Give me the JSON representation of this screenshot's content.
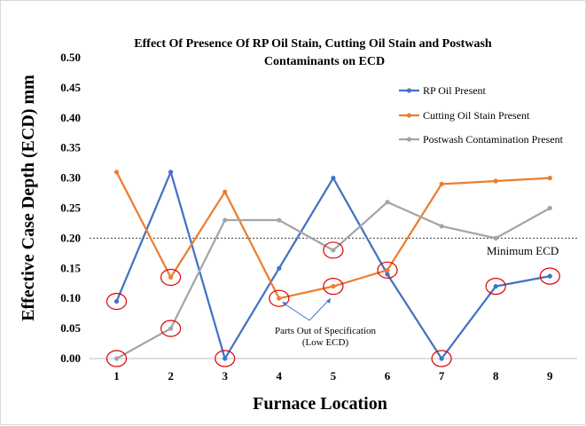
{
  "chart_data": {
    "type": "line",
    "title_line1": "Effect Of Presence Of RP Oil Stain, Cutting Oil Stain and Postwash",
    "title_line2": "Contaminants on ECD",
    "xlabel": "Furnace Location",
    "ylabel": "Effective Case Depth  (ECD) mm",
    "categories": [
      "1",
      "2",
      "3",
      "4",
      "5",
      "6",
      "7",
      "8",
      "9"
    ],
    "yticks": [
      "0.00",
      "0.05",
      "0.10",
      "0.15",
      "0.20",
      "0.25",
      "0.30",
      "0.35",
      "0.40",
      "0.45",
      "0.50"
    ],
    "ylim": [
      0,
      0.5
    ],
    "series": [
      {
        "name": "RP Oil Present",
        "color": "#4472c4",
        "values": [
          0.095,
          0.31,
          0.0,
          0.15,
          0.3,
          0.14,
          0.0,
          0.12,
          0.137
        ]
      },
      {
        "name": "Cutting Oil Stain Present",
        "color": "#ed7d31",
        "values": [
          0.31,
          0.135,
          0.277,
          0.1,
          0.12,
          0.147,
          0.29,
          0.295,
          0.3
        ]
      },
      {
        "name": "Postwash Contamination Present",
        "color": "#a5a5a5",
        "values": [
          0.0,
          0.05,
          0.23,
          0.23,
          0.18,
          0.26,
          0.22,
          0.2,
          0.25
        ]
      }
    ],
    "reference_line": {
      "label": "Minimum ECD",
      "value": 0.2
    },
    "annotation_line1": "Parts Out of Specification",
    "annotation_line2": "(Low ECD)",
    "highlighted_points": [
      {
        "location": 1,
        "value": 0.095
      },
      {
        "location": 1,
        "value": 0.0
      },
      {
        "location": 2,
        "value": 0.135
      },
      {
        "location": 2,
        "value": 0.05
      },
      {
        "location": 3,
        "value": 0.0
      },
      {
        "location": 4,
        "value": 0.1
      },
      {
        "location": 5,
        "value": 0.12
      },
      {
        "location": 5,
        "value": 0.18
      },
      {
        "location": 6,
        "value": 0.147
      },
      {
        "location": 7,
        "value": 0.0
      },
      {
        "location": 8,
        "value": 0.12
      },
      {
        "location": 9,
        "value": 0.137
      }
    ],
    "highlight_color": "#e00000",
    "grid": false,
    "legend_position": "right"
  }
}
